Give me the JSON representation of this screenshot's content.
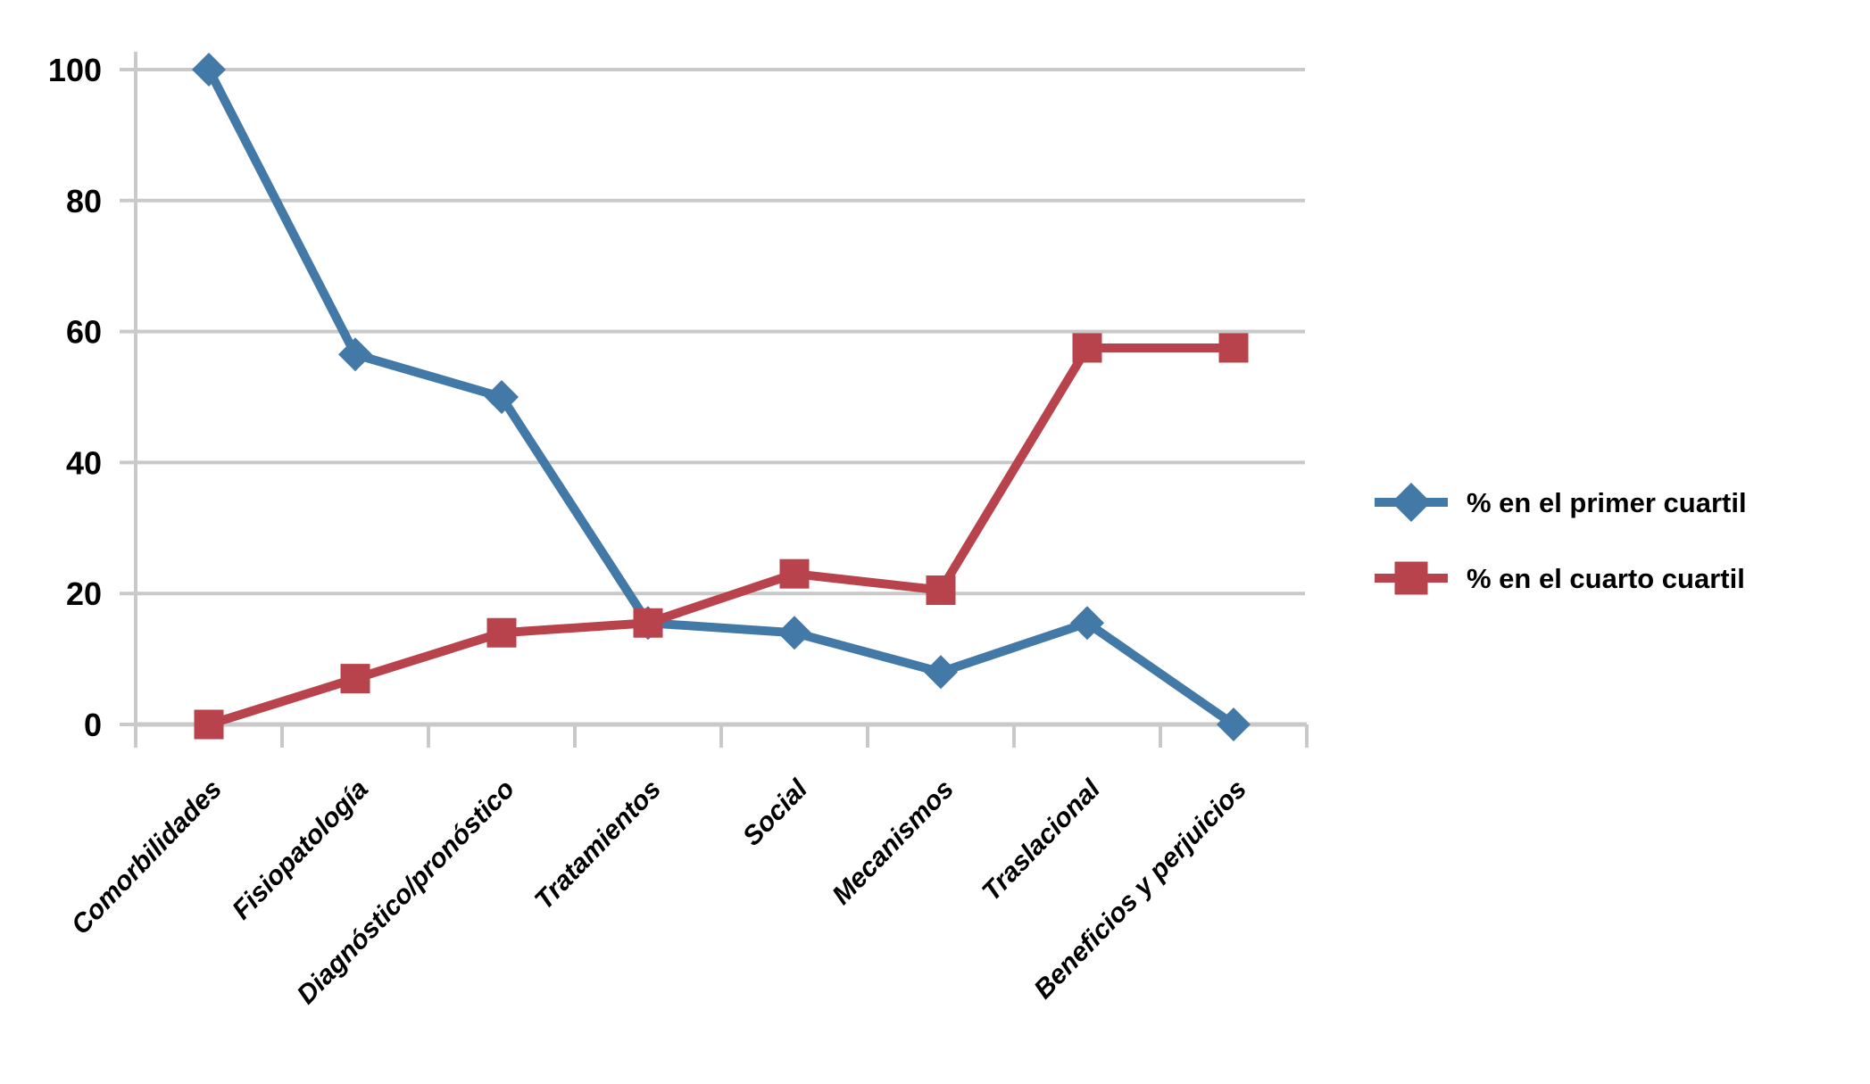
{
  "chart_data": {
    "type": "line",
    "title": "",
    "xlabel": "",
    "ylabel": "",
    "categories": [
      "Comorbilidades",
      "Fisiopatología",
      "Diagnóstico/pronóstico",
      "Tratamientos",
      "Social",
      "Mecanismos",
      "Traslacional",
      "Beneficios y perjuicios"
    ],
    "series": [
      {
        "name": "% en el primer cuartil",
        "marker": "diamond",
        "color": "#4279A6",
        "values": [
          100,
          56.5,
          50,
          15.5,
          14,
          8,
          15.5,
          0
        ]
      },
      {
        "name": "% en el cuarto cuartil",
        "marker": "square",
        "color": "#B9434D",
        "values": [
          0,
          7,
          14,
          15.5,
          23,
          20.5,
          57.5,
          57.5
        ]
      }
    ],
    "ylim": [
      0,
      100
    ],
    "yticks": [
      0,
      20,
      40,
      60,
      80,
      100
    ],
    "grid": true,
    "legend_position": "right",
    "colors": {
      "grid": "#C9C9C9",
      "axis": "#C9C9C9",
      "text": "#000000",
      "background": "#FFFFFF"
    }
  }
}
